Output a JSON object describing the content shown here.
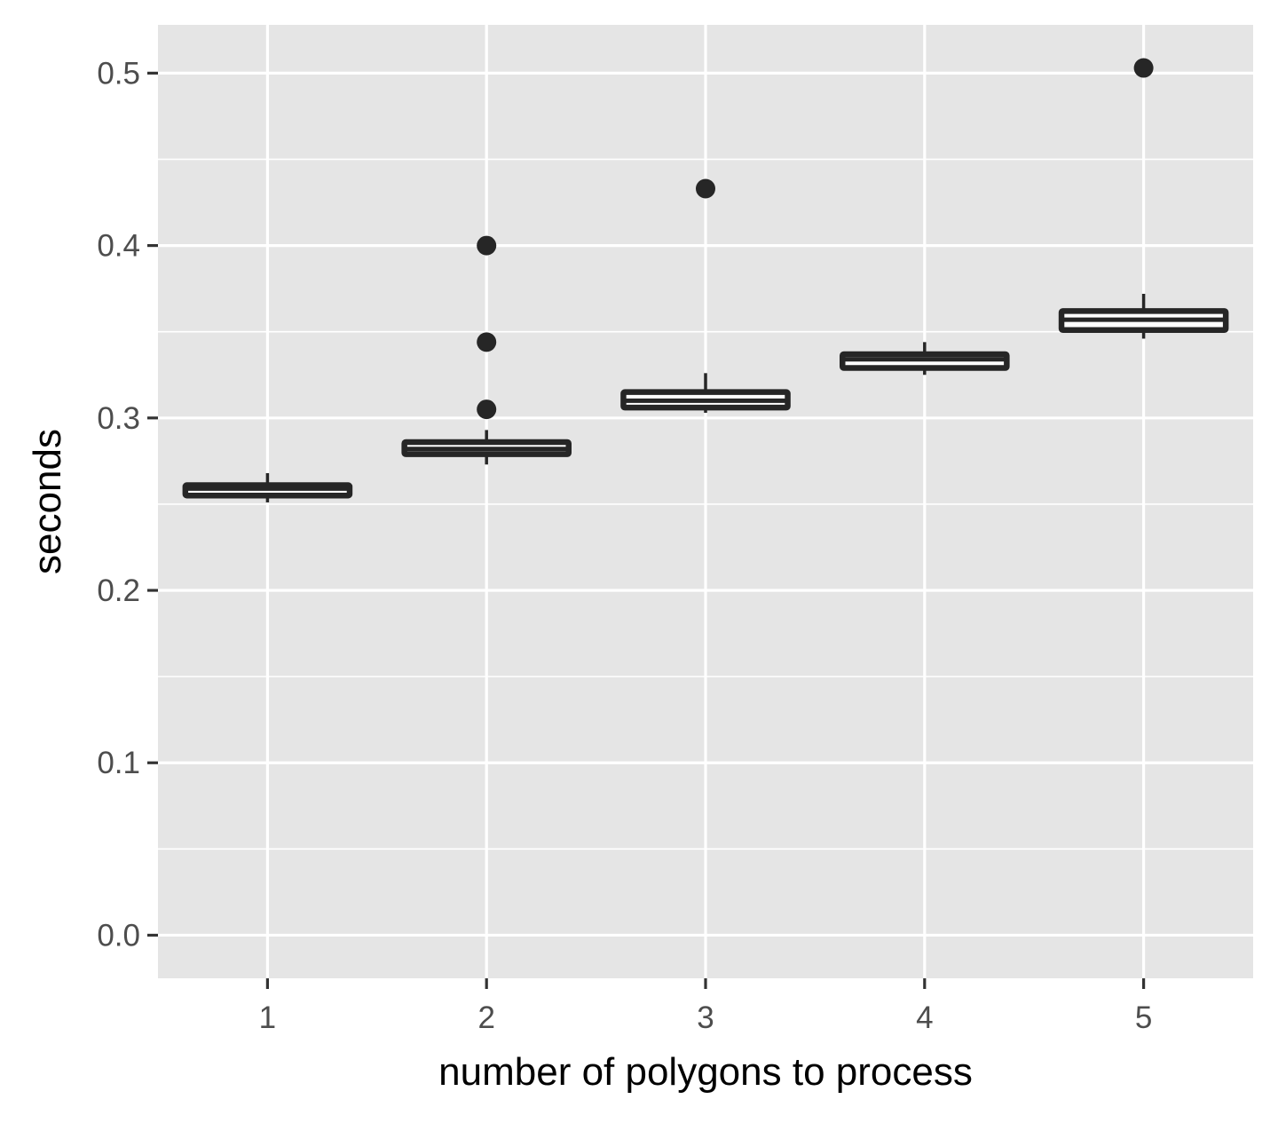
{
  "chart_data": {
    "type": "boxplot",
    "title": "",
    "xlabel": "number of polygons to process",
    "ylabel": "seconds",
    "categories": [
      "1",
      "2",
      "3",
      "4",
      "5"
    ],
    "ylim": [
      -0.025,
      0.528
    ],
    "yticks": [
      "0.0",
      "0.1",
      "0.2",
      "0.3",
      "0.4",
      "0.5"
    ],
    "grid": true,
    "legend": "none",
    "boxes": [
      {
        "x": "1",
        "min": 0.251,
        "q1": 0.255,
        "median": 0.259,
        "q3": 0.261,
        "max": 0.268,
        "outliers": []
      },
      {
        "x": "2",
        "min": 0.273,
        "q1": 0.279,
        "median": 0.282,
        "q3": 0.286,
        "max": 0.293,
        "outliers": [
          0.305,
          0.344,
          0.4
        ]
      },
      {
        "x": "3",
        "min": 0.303,
        "q1": 0.306,
        "median": 0.31,
        "q3": 0.315,
        "max": 0.326,
        "outliers": [
          0.433
        ]
      },
      {
        "x": "4",
        "min": 0.325,
        "q1": 0.329,
        "median": 0.334,
        "q3": 0.337,
        "max": 0.344,
        "outliers": []
      },
      {
        "x": "5",
        "min": 0.346,
        "q1": 0.351,
        "median": 0.357,
        "q3": 0.362,
        "max": 0.372,
        "outliers": [
          0.503
        ]
      }
    ],
    "colors": {
      "panel": "#e5e5e5",
      "grid": "#ffffff",
      "box_line": "#262626",
      "box_fill": "#ffffff",
      "tick_text": "#4d4d4d",
      "title_text": "#000000"
    }
  }
}
